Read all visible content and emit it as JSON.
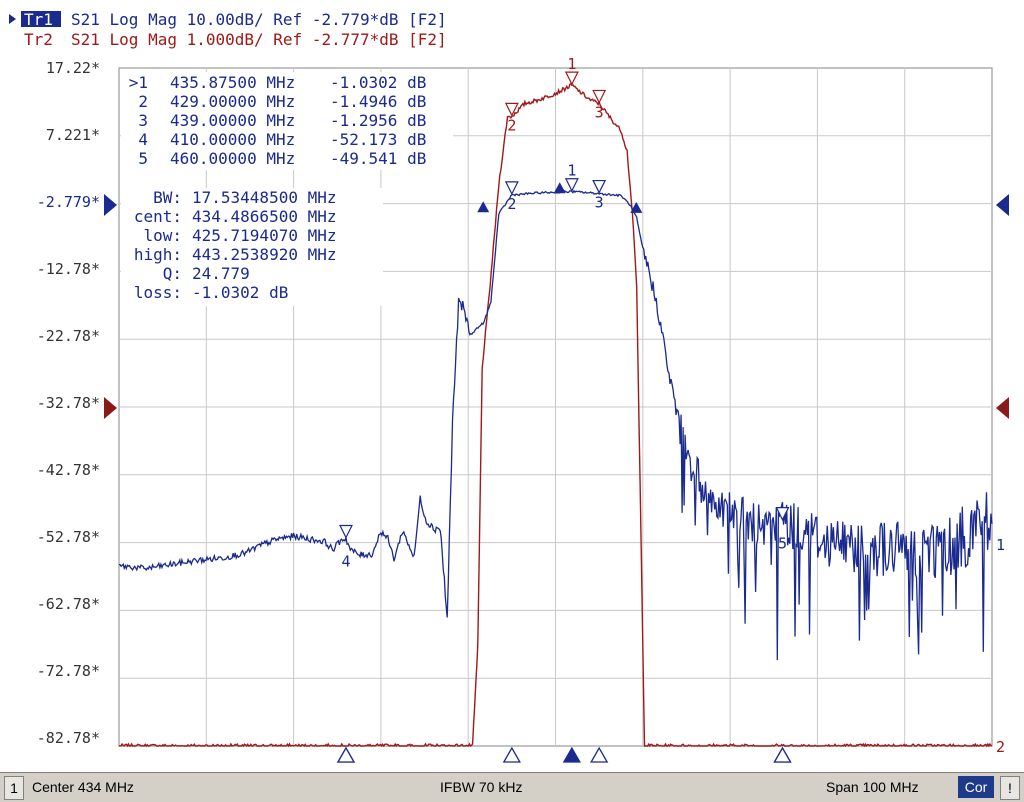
{
  "traces": {
    "tr1": {
      "badge": "Tr1",
      "label": "S21 Log Mag 10.00dB/ Ref -2.779*dB [F2]",
      "color": "#1a2a8f"
    },
    "tr2": {
      "badge": "Tr2",
      "label": "S21 Log Mag 1.000dB/ Ref -2.777*dB [F2]",
      "color": "#a01818"
    }
  },
  "y_axis_labels": [
    "17.22*",
    "7.221*",
    "-2.779*",
    "-12.78*",
    "-22.78*",
    "-32.78*",
    "-42.78*",
    "-52.78*",
    "-62.78*",
    "-72.78*",
    "-82.78*"
  ],
  "marker_table": [
    {
      "id": ">1",
      "freq": "435.87500 MHz",
      "value": "-1.0302 dB"
    },
    {
      "id": "2",
      "freq": "429.00000 MHz",
      "value": "-1.4946 dB"
    },
    {
      "id": "3",
      "freq": "439.00000 MHz",
      "value": "-1.2956 dB"
    },
    {
      "id": "4",
      "freq": "410.00000 MHz",
      "value": "-52.173 dB"
    },
    {
      "id": "5",
      "freq": "460.00000 MHz",
      "value": "-49.541 dB"
    }
  ],
  "bw_stats": [
    {
      "label": "BW:",
      "value": "17.53448500 MHz"
    },
    {
      "label": "cent:",
      "value": "434.4866500 MHz"
    },
    {
      "label": "low:",
      "value": "425.7194070 MHz"
    },
    {
      "label": "high:",
      "value": "443.2538920 MHz"
    },
    {
      "label": "Q:",
      "value": "24.779"
    },
    {
      "label": "loss:",
      "value": "-1.0302 dB"
    }
  ],
  "right_edge_labels": {
    "tr1": "1",
    "tr2": "2"
  },
  "chart_data": {
    "type": "line",
    "x_range": [
      384,
      484
    ],
    "x_unit": "MHz",
    "series": [
      {
        "name": "Tr1",
        "color": "#1a2a8f",
        "y_unit": "dB",
        "x": [
          384.0,
          387.0,
          390.0,
          393.0,
          396.0,
          398.5,
          400.0,
          402.0,
          404.0,
          406.5,
          407.5,
          408.5,
          409.5,
          410.0,
          410.5,
          411.5,
          413.0,
          414.0,
          414.8,
          415.5,
          416.5,
          417.8,
          418.5,
          419.2,
          420.0,
          420.8,
          421.6,
          422.2,
          422.9,
          423.5,
          424.2,
          425.0,
          425.8,
          426.6,
          427.5,
          429.0,
          432.0,
          435.875,
          439.0,
          441.5,
          442.5,
          443.3,
          444.0,
          444.8,
          445.8,
          447.0,
          448.5,
          450.0,
          452.0,
          455.0,
          458.0,
          460.0,
          465.0,
          470.0,
          475.0,
          480.0,
          483.0,
          484.0
        ],
        "y": [
          -56.2,
          -56.6,
          -56.0,
          -55.4,
          -55.0,
          -54.3,
          -53.3,
          -52.3,
          -51.8,
          -52.4,
          -52.6,
          -53.8,
          -52.3,
          -52.2,
          -53.8,
          -54.6,
          -54.5,
          -51.1,
          -52.2,
          -55.2,
          -51.0,
          -55.0,
          -46.2,
          -49.7,
          -50.5,
          -50.7,
          -64.2,
          -35.2,
          -17.5,
          -18.2,
          -22.2,
          -21.2,
          -20.3,
          -17.3,
          -4.3,
          -1.5,
          -1.2,
          -1.0,
          -1.3,
          -1.6,
          -2.9,
          -4.9,
          -9.6,
          -13.2,
          -18.8,
          -28.0,
          -37.4,
          -42.6,
          -46.5,
          -49.0,
          -51.0,
          -49.5,
          -52.5,
          -53.5,
          -54.0,
          -53.0,
          -49.0,
          -50.0
        ]
      },
      {
        "name": "Tr2",
        "color": "#a01818",
        "y_unit": "dB",
        "x": [
          384.0,
          424.5,
          425.1,
          425.6,
          426.5,
          427.5,
          428.5,
          429.0,
          430.5,
          432.0,
          434.0,
          435.875,
          437.0,
          438.0,
          439.0,
          440.5,
          441.5,
          442.2,
          442.8,
          443.3,
          444.2,
          484.0
        ],
        "y": [
          -10.777,
          -10.777,
          -9.3,
          -5.2,
          -4.0,
          -2.5,
          -1.5,
          -1.49,
          -1.3,
          -1.25,
          -1.15,
          -1.03,
          -1.15,
          -1.25,
          -1.3,
          -1.55,
          -1.7,
          -2.0,
          -2.9,
          -4.0,
          -10.777,
          -10.777
        ]
      }
    ],
    "markers": [
      {
        "id": "1",
        "x": 435.875,
        "label_y": -1.03
      },
      {
        "id": "2",
        "x": 429.0,
        "label_y": -1.49
      },
      {
        "id": "3",
        "x": 439.0,
        "label_y": -1.3
      },
      {
        "id": "4",
        "x": 410.0,
        "label_y": -52.17
      },
      {
        "id": "5",
        "x": 460.0,
        "label_y": -49.54
      }
    ]
  },
  "status_bar": {
    "channel": "1",
    "center": "Center 434 MHz",
    "ifbw": "IFBW 70 kHz",
    "span": "Span 100 MHz",
    "cor": "Cor",
    "bang": "!"
  }
}
